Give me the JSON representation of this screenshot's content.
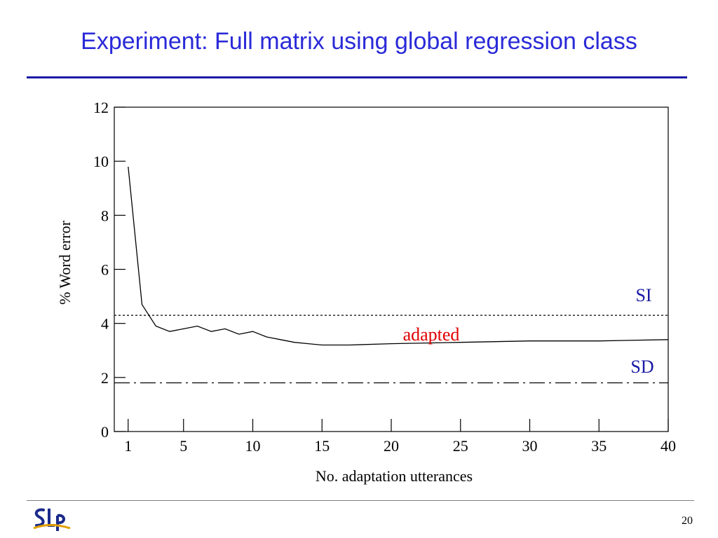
{
  "slide": {
    "title": "Experiment: Full matrix using global regression class",
    "page_number": "20",
    "logo_text": "SLP"
  },
  "colors": {
    "title": "#2a2ad8",
    "rule": "#1a1aa6",
    "adapted_label": "#e00000",
    "si_sd_labels": "#1a1aa6"
  },
  "chart_data": {
    "type": "line",
    "title": "",
    "xlabel": "No. adaptation utterances",
    "ylabel": "% Word error",
    "xlim": [
      0,
      40
    ],
    "ylim": [
      0,
      12
    ],
    "x_ticks": [
      1,
      5,
      10,
      15,
      20,
      25,
      30,
      35,
      40
    ],
    "y_ticks": [
      0,
      2,
      4,
      6,
      8,
      10,
      12
    ],
    "grid": false,
    "series": [
      {
        "name": "adapted",
        "style": "solid",
        "x": [
          1,
          2,
          3,
          4,
          5,
          6,
          7,
          8,
          9,
          10,
          11,
          12,
          13,
          14,
          15,
          17,
          20,
          25,
          30,
          35,
          40
        ],
        "y": [
          9.8,
          4.7,
          3.9,
          3.7,
          3.8,
          3.9,
          3.7,
          3.8,
          3.6,
          3.7,
          3.5,
          3.4,
          3.3,
          3.25,
          3.2,
          3.2,
          3.25,
          3.3,
          3.35,
          3.35,
          3.4
        ]
      },
      {
        "name": "SI",
        "style": "dotted",
        "x": [
          0,
          40
        ],
        "y": [
          4.3,
          4.3
        ]
      },
      {
        "name": "SD",
        "style": "dashdot",
        "x": [
          0,
          40
        ],
        "y": [
          1.8,
          1.8
        ]
      }
    ]
  }
}
